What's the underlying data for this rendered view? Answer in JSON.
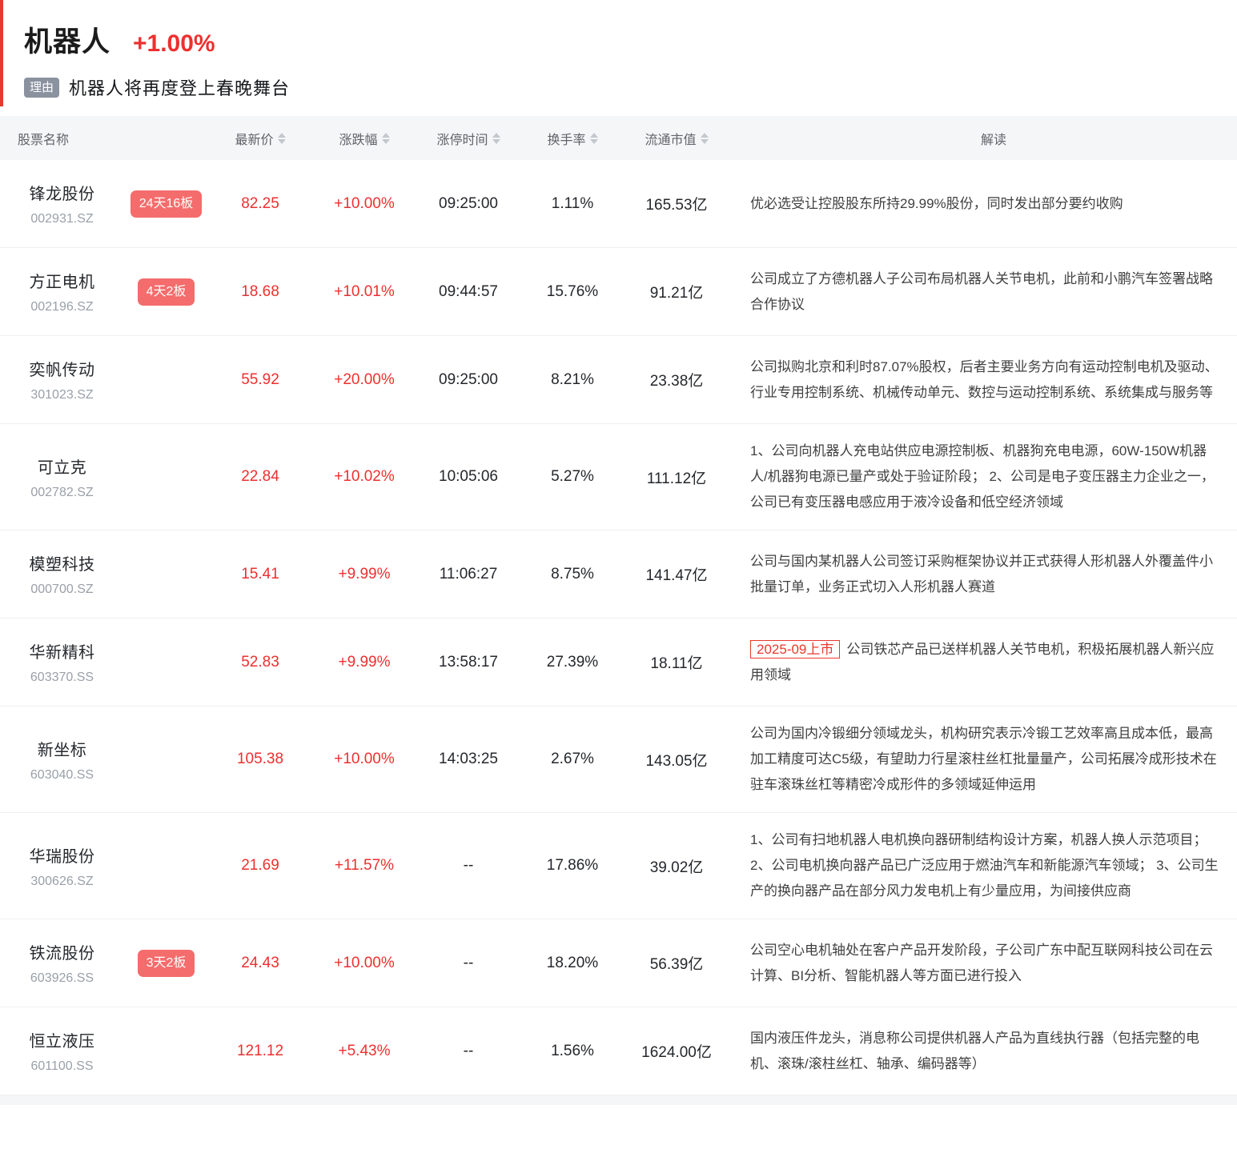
{
  "header": {
    "title": "机器人",
    "change": "+1.00%",
    "reason_label": "理由",
    "reason_text": "机器人将再度登上春晚舞台"
  },
  "colors": {
    "accent_red": "#e8392d",
    "value_red": "#ee2f2f",
    "badge_red": "#f56c6c",
    "reason_badge_gray": "#8a919f"
  },
  "table": {
    "columns": [
      {
        "label": "股票名称",
        "sortable": false
      },
      {
        "label": "最新价",
        "sortable": true
      },
      {
        "label": "涨跌幅",
        "sortable": true
      },
      {
        "label": "涨停时间",
        "sortable": true
      },
      {
        "label": "换手率",
        "sortable": true
      },
      {
        "label": "流通市值",
        "sortable": true
      },
      {
        "label": "解读",
        "sortable": false
      }
    ],
    "rows": [
      {
        "name": "锋龙股份",
        "code": "002931.SZ",
        "badge": "24天16板",
        "price": "82.25",
        "change": "+10.00%",
        "limit_time": "09:25:00",
        "turnover": "1.11%",
        "market_cap": "165.53亿",
        "tag": "",
        "interpretation": "优必选受让控股股东所持29.99%股份，同时发出部分要约收购"
      },
      {
        "name": "方正电机",
        "code": "002196.SZ",
        "badge": "4天2板",
        "price": "18.68",
        "change": "+10.01%",
        "limit_time": "09:44:57",
        "turnover": "15.76%",
        "market_cap": "91.21亿",
        "tag": "",
        "interpretation": "公司成立了方德机器人子公司布局机器人关节电机，此前和小鹏汽车签署战略合作协议"
      },
      {
        "name": "奕帆传动",
        "code": "301023.SZ",
        "badge": "",
        "price": "55.92",
        "change": "+20.00%",
        "limit_time": "09:25:00",
        "turnover": "8.21%",
        "market_cap": "23.38亿",
        "tag": "",
        "interpretation": "公司拟购北京和利时87.07%股权，后者主要业务方向有运动控制电机及驱动、行业专用控制系统、机械传动单元、数控与运动控制系统、系统集成与服务等"
      },
      {
        "name": "可立克",
        "code": "002782.SZ",
        "badge": "",
        "price": "22.84",
        "change": "+10.02%",
        "limit_time": "10:05:06",
        "turnover": "5.27%",
        "market_cap": "111.12亿",
        "tag": "",
        "interpretation": "1、公司向机器人充电站供应电源控制板、机器狗充电电源，60W-150W机器人/机器狗电源已量产或处于验证阶段； 2、公司是电子变压器主力企业之一，公司已有变压器电感应用于液冷设备和低空经济领域"
      },
      {
        "name": "模塑科技",
        "code": "000700.SZ",
        "badge": "",
        "price": "15.41",
        "change": "+9.99%",
        "limit_time": "11:06:27",
        "turnover": "8.75%",
        "market_cap": "141.47亿",
        "tag": "",
        "interpretation": "公司与国内某机器人公司签订采购框架协议并正式获得人形机器人外覆盖件小批量订单，业务正式切入人形机器人赛道"
      },
      {
        "name": "华新精科",
        "code": "603370.SS",
        "badge": "",
        "price": "52.83",
        "change": "+9.99%",
        "limit_time": "13:58:17",
        "turnover": "27.39%",
        "market_cap": "18.11亿",
        "tag": "2025-09上市",
        "interpretation": "公司铁芯产品已送样机器人关节电机，积极拓展机器人新兴应用领域"
      },
      {
        "name": "新坐标",
        "code": "603040.SS",
        "badge": "",
        "price": "105.38",
        "change": "+10.00%",
        "limit_time": "14:03:25",
        "turnover": "2.67%",
        "market_cap": "143.05亿",
        "tag": "",
        "interpretation": "公司为国内冷锻细分领域龙头，机构研究表示冷锻工艺效率高且成本低，最高加工精度可达C5级，有望助力行星滚柱丝杠批量量产，公司拓展冷成形技术在驻车滚珠丝杠等精密冷成形件的多领域延伸运用"
      },
      {
        "name": "华瑞股份",
        "code": "300626.SZ",
        "badge": "",
        "price": "21.69",
        "change": "+11.57%",
        "limit_time": "--",
        "turnover": "17.86%",
        "market_cap": "39.02亿",
        "tag": "",
        "interpretation": "1、公司有扫地机器人电机换向器研制结构设计方案，机器人换人示范项目； 2、公司电机换向器产品已广泛应用于燃油汽车和新能源汽车领域； 3、公司生产的换向器产品在部分风力发电机上有少量应用，为间接供应商"
      },
      {
        "name": "铁流股份",
        "code": "603926.SS",
        "badge": "3天2板",
        "price": "24.43",
        "change": "+10.00%",
        "limit_time": "--",
        "turnover": "18.20%",
        "market_cap": "56.39亿",
        "tag": "",
        "interpretation": "公司空心电机轴处在客户产品开发阶段，子公司广东中配互联网科技公司在云计算、BI分析、智能机器人等方面已进行投入"
      },
      {
        "name": "恒立液压",
        "code": "601100.SS",
        "badge": "",
        "price": "121.12",
        "change": "+5.43%",
        "limit_time": "--",
        "turnover": "1.56%",
        "market_cap": "1624.00亿",
        "tag": "",
        "interpretation": "国内液压件龙头，消息称公司提供机器人产品为直线执行器（包括完整的电机、滚珠/滚柱丝杠、轴承、编码器等）"
      }
    ]
  }
}
